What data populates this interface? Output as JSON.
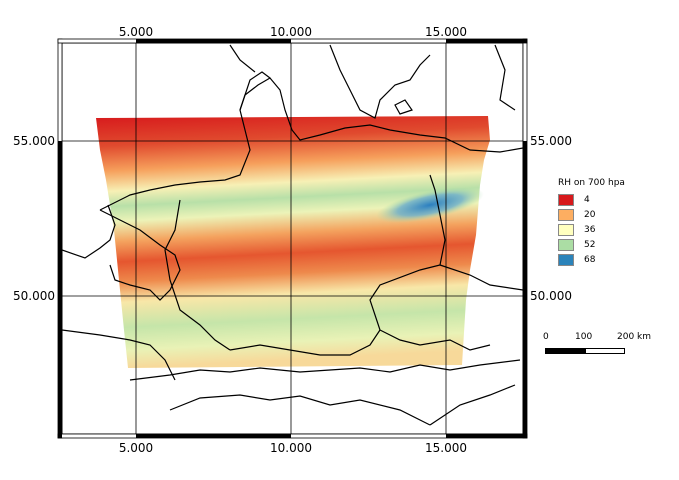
{
  "map": {
    "x_ticks": [
      "5.000",
      "10.000",
      "15.000"
    ],
    "y_ticks": [
      "55.000",
      "50.000"
    ]
  },
  "legend": {
    "title": "RH on 700 hpa",
    "items": [
      {
        "label": "4",
        "color": "#d7191c"
      },
      {
        "label": "20",
        "color": "#fdae61"
      },
      {
        "label": "36",
        "color": "#ffffbf"
      },
      {
        "label": "52",
        "color": "#abdda4"
      },
      {
        "label": "68",
        "color": "#2b83ba"
      }
    ]
  },
  "scalebar": {
    "labels": [
      "0",
      "100",
      "200 km"
    ]
  }
}
